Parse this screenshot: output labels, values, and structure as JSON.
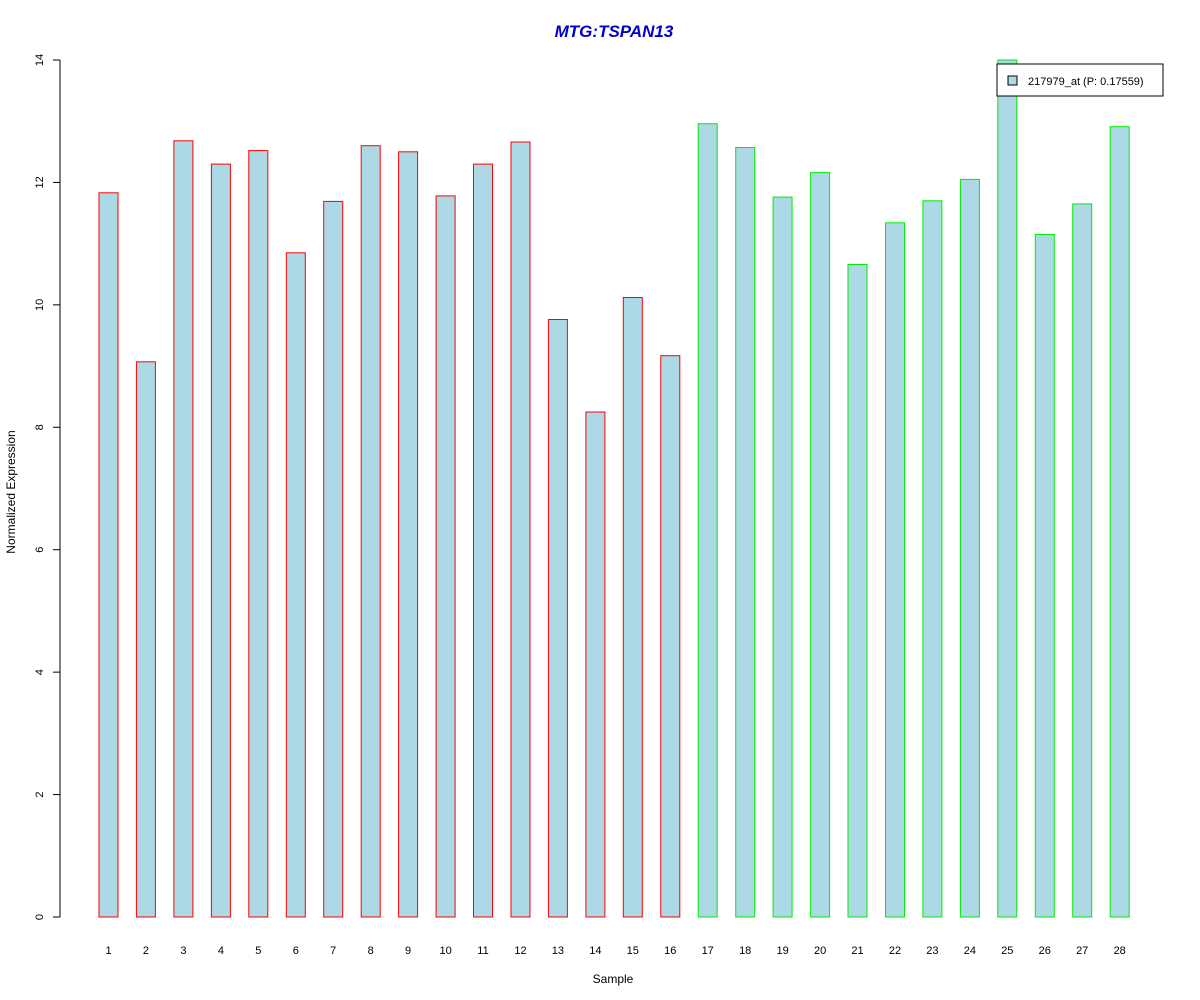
{
  "chart_data": {
    "type": "bar",
    "title": "MTG:TSPAN13",
    "xlabel": "Sample",
    "ylabel": "Normalized Expression",
    "ylim": [
      0,
      14
    ],
    "yticks": [
      0,
      2,
      4,
      6,
      8,
      10,
      12,
      14
    ],
    "categories": [
      "1",
      "2",
      "3",
      "4",
      "5",
      "6",
      "7",
      "8",
      "9",
      "10",
      "11",
      "12",
      "13",
      "14",
      "15",
      "16",
      "17",
      "18",
      "19",
      "20",
      "21",
      "22",
      "23",
      "24",
      "25",
      "26",
      "27",
      "28"
    ],
    "series": [
      {
        "name": "217979_at (P: 0.17559)",
        "values": [
          11.83,
          9.07,
          12.68,
          12.3,
          12.52,
          10.85,
          11.69,
          12.6,
          12.5,
          11.78,
          12.3,
          12.66,
          9.76,
          8.25,
          10.12,
          9.17,
          12.96,
          12.57,
          11.76,
          12.16,
          10.66,
          11.34,
          11.7,
          12.05,
          14.0,
          11.15,
          11.65,
          12.91
        ]
      }
    ],
    "groups": [
      {
        "samples": [
          1,
          16
        ],
        "border_color": "#ff0000"
      },
      {
        "samples": [
          17,
          28
        ],
        "border_color": "#00ee00"
      }
    ],
    "bar_fill": "#add8e6",
    "title_color": "#0000cc",
    "grid": false,
    "legend_position": "top-right"
  }
}
